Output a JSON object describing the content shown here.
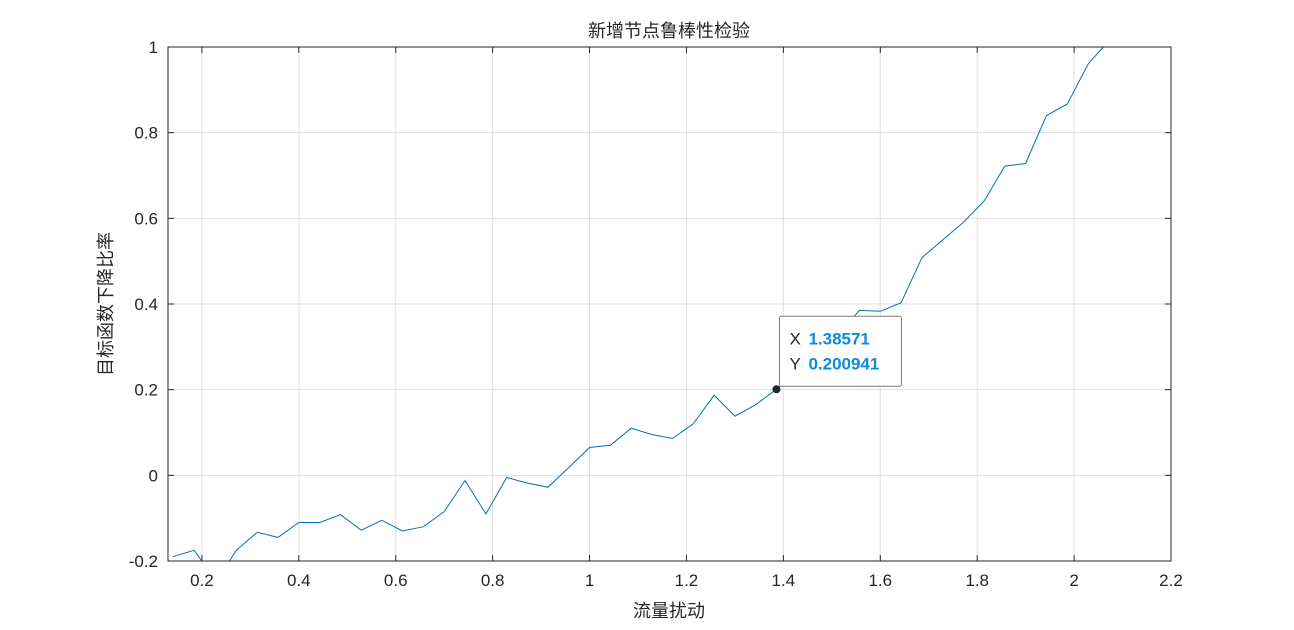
{
  "chart_data": {
    "type": "line",
    "title": "新增节点鲁棒性检验",
    "xlabel": "流量扰动",
    "ylabel": "目标函数下降比率",
    "xlim": [
      0.13,
      2.2
    ],
    "ylim": [
      -0.2,
      1
    ],
    "x_ticks": [
      "0.2",
      "0.4",
      "0.6",
      "0.8",
      "1",
      "1.2",
      "1.4",
      "1.6",
      "1.8",
      "2",
      "2.2"
    ],
    "y_ticks": [
      "-0.2",
      "0",
      "0.2",
      "0.4",
      "0.6",
      "0.8",
      "1"
    ],
    "grid": true,
    "colors": {
      "series": "#0072bd",
      "datatip_value": "#0a8ce0"
    },
    "series": [
      {
        "x": [
          0.14,
          0.184,
          0.2,
          0.227,
          0.257,
          0.271,
          0.314,
          0.357,
          0.4,
          0.443,
          0.486,
          0.529,
          0.571,
          0.614,
          0.657,
          0.7,
          0.743,
          0.786,
          0.829,
          0.871,
          0.914,
          0.957,
          1.0,
          1.043,
          1.086,
          1.129,
          1.171,
          1.214,
          1.257,
          1.3,
          1.343,
          1.386,
          1.429,
          1.471,
          1.514,
          1.557,
          1.6,
          1.643,
          1.686,
          1.729,
          1.771,
          1.814,
          1.857,
          1.9,
          1.943,
          1.986,
          2.029,
          2.06
        ],
        "y": [
          -0.19,
          -0.175,
          -0.2,
          -0.205,
          -0.2,
          -0.175,
          -0.133,
          -0.145,
          -0.11,
          -0.11,
          -0.092,
          -0.128,
          -0.105,
          -0.13,
          -0.12,
          -0.085,
          -0.012,
          -0.09,
          -0.005,
          -0.018,
          -0.028,
          0.018,
          0.065,
          0.07,
          0.11,
          0.095,
          0.086,
          0.12,
          0.187,
          0.138,
          0.165,
          0.201,
          0.24,
          0.28,
          0.33,
          0.385,
          0.383,
          0.403,
          0.508,
          0.55,
          0.59,
          0.64,
          0.722,
          0.728,
          0.84,
          0.867,
          0.96,
          1.0
        ]
      }
    ],
    "datatip": {
      "x_label": "X",
      "x_value": "1.38571",
      "y_label": "Y",
      "y_value": "0.200941",
      "point": [
        1.38571,
        0.200941
      ]
    }
  }
}
